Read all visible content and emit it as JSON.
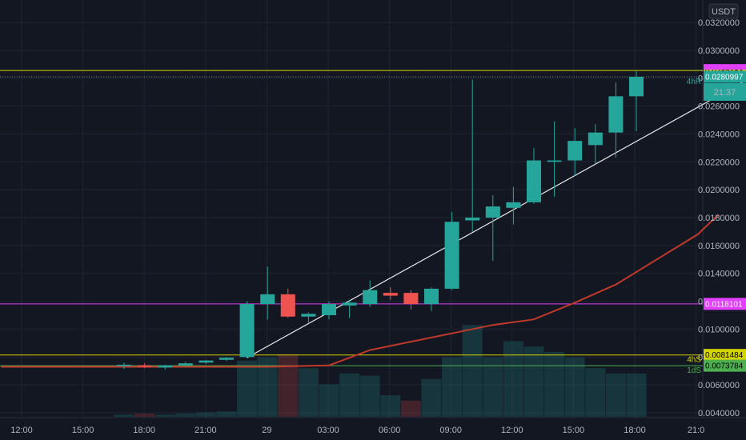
{
  "chart_data": {
    "type": "candlestick",
    "quote_currency": "USDT",
    "y_range": [
      0.004,
      0.032
    ],
    "y_ticks": [
      "0.0320000",
      "0.0300000",
      "0.0280000",
      "0.0260000",
      "0.0240000",
      "0.0220000",
      "0.0200000",
      "0.0180000",
      "0.0160000",
      "0.0140000",
      "0.0120000",
      "0.0100000",
      "0.0080000",
      "0.0060000",
      "0.0040000"
    ],
    "x_ticks": [
      "12:00",
      "15:00",
      "18:00",
      "21:00",
      "29",
      "03:00",
      "06:00",
      "09:00",
      "12:00",
      "15:00",
      "18:00",
      "21:0"
    ],
    "candles": [
      {
        "t": 0,
        "o": 0.00735,
        "h": 0.0076,
        "l": 0.00715,
        "c": 0.00745
      },
      {
        "t": 1,
        "o": 0.0074,
        "h": 0.00755,
        "l": 0.0072,
        "c": 0.0073
      },
      {
        "t": 2,
        "o": 0.00725,
        "h": 0.00745,
        "l": 0.0071,
        "c": 0.0074
      },
      {
        "t": 3,
        "o": 0.0074,
        "h": 0.00765,
        "l": 0.0073,
        "c": 0.00755
      },
      {
        "t": 4,
        "o": 0.0076,
        "h": 0.0078,
        "l": 0.0075,
        "c": 0.00775
      },
      {
        "t": 5,
        "o": 0.0078,
        "h": 0.008,
        "l": 0.0077,
        "c": 0.00795
      },
      {
        "t": 6,
        "o": 0.008,
        "h": 0.012,
        "l": 0.0079,
        "c": 0.0118
      },
      {
        "t": 7,
        "o": 0.0118,
        "h": 0.0145,
        "l": 0.0107,
        "c": 0.0125
      },
      {
        "t": 8,
        "o": 0.0125,
        "h": 0.0129,
        "l": 0.0108,
        "c": 0.0109
      },
      {
        "t": 9,
        "o": 0.0109,
        "h": 0.0112,
        "l": 0.0104,
        "c": 0.0111
      },
      {
        "t": 10,
        "o": 0.011,
        "h": 0.012,
        "l": 0.0107,
        "c": 0.0118
      },
      {
        "t": 11,
        "o": 0.0117,
        "h": 0.0121,
        "l": 0.0108,
        "c": 0.0119
      },
      {
        "t": 12,
        "o": 0.0118,
        "h": 0.0135,
        "l": 0.0116,
        "c": 0.0128
      },
      {
        "t": 13,
        "o": 0.0126,
        "h": 0.013,
        "l": 0.0121,
        "c": 0.0124
      },
      {
        "t": 14,
        "o": 0.0126,
        "h": 0.0128,
        "l": 0.0114,
        "c": 0.0118
      },
      {
        "t": 15,
        "o": 0.0118,
        "h": 0.013,
        "l": 0.0113,
        "c": 0.0129
      },
      {
        "t": 16,
        "o": 0.0129,
        "h": 0.0184,
        "l": 0.0128,
        "c": 0.0177
      },
      {
        "t": 17,
        "o": 0.0178,
        "h": 0.0279,
        "l": 0.017,
        "c": 0.018
      },
      {
        "t": 18,
        "o": 0.018,
        "h": 0.0196,
        "l": 0.0149,
        "c": 0.0188
      },
      {
        "t": 19,
        "o": 0.0187,
        "h": 0.0202,
        "l": 0.0175,
        "c": 0.0191
      },
      {
        "t": 20,
        "o": 0.0191,
        "h": 0.023,
        "l": 0.019,
        "c": 0.0221
      },
      {
        "t": 21,
        "o": 0.022,
        "h": 0.0249,
        "l": 0.0195,
        "c": 0.0221
      },
      {
        "t": 22,
        "o": 0.0221,
        "h": 0.0244,
        "l": 0.021,
        "c": 0.0235
      },
      {
        "t": 23,
        "o": 0.0232,
        "h": 0.0247,
        "l": 0.0219,
        "c": 0.0241
      },
      {
        "t": 24,
        "o": 0.0241,
        "h": 0.0277,
        "l": 0.0223,
        "c": 0.0267
      },
      {
        "t": 25,
        "o": 0.0267,
        "h": 0.0285,
        "l": 0.0242,
        "c": 0.0281
      }
    ],
    "volume_max": 1.0,
    "volumes": [
      0.02,
      0.03,
      0.02,
      0.03,
      0.04,
      0.05,
      0.52,
      0.55,
      0.58,
      0.45,
      0.3,
      0.4,
      0.38,
      0.2,
      0.15,
      0.35,
      0.55,
      0.85,
      0.55,
      0.7,
      0.65,
      0.6,
      0.55,
      0.45,
      0.4,
      0.4
    ],
    "volume_up": [
      true,
      false,
      true,
      true,
      true,
      true,
      true,
      true,
      false,
      true,
      true,
      true,
      true,
      true,
      false,
      true,
      true,
      true,
      true,
      true,
      true,
      true,
      true,
      true,
      true,
      true
    ],
    "moving_average": [
      [
        -6,
        0.0073
      ],
      [
        -2,
        0.0073
      ],
      [
        3,
        0.0073
      ],
      [
        7,
        0.0073
      ],
      [
        10,
        0.0074
      ],
      [
        12,
        0.0085
      ],
      [
        14,
        0.0091
      ],
      [
        16,
        0.0097
      ],
      [
        18,
        0.0103
      ],
      [
        20,
        0.0107
      ],
      [
        22,
        0.0119
      ],
      [
        24,
        0.0132
      ],
      [
        26,
        0.015
      ],
      [
        28,
        0.0168
      ],
      [
        29,
        0.0182
      ]
    ],
    "trend_line": {
      "from": [
        6,
        0.00795
      ],
      "to": [
        33,
        0.03
      ]
    },
    "levels": [
      {
        "value": 0.0285483,
        "label": "0.0285483",
        "tag": "",
        "color": "#d4d400",
        "tag_color": "#e040fb",
        "style": "solid"
      },
      {
        "value": 0.0280997,
        "label": "0.0280997",
        "tag": "4hR",
        "color": "#7a8494",
        "tag_color": "#26a69a",
        "style": "dotted"
      },
      {
        "value": 0.0118101,
        "label": "0.0118101",
        "tag": "",
        "color": "#e040fb",
        "tag_color": "#e040fb",
        "style": "solid"
      },
      {
        "value": 0.0081484,
        "label": "0.0081484",
        "tag": "4hS",
        "color": "#d4d400",
        "tag_color": "#d4d400",
        "style": "solid"
      },
      {
        "value": 0.0073784,
        "label": "0.0073784",
        "tag": "1dS",
        "color": "#4caf50",
        "tag_color": "#4caf50",
        "style": "solid"
      }
    ],
    "countdown": "21:37",
    "colors": {
      "up": "#26a69a",
      "down": "#ef5350",
      "ma": "#c0392b",
      "trend": "#e8e8e8",
      "grid": "#1f2433",
      "bg": "#131722",
      "text": "#b2b5be"
    }
  }
}
